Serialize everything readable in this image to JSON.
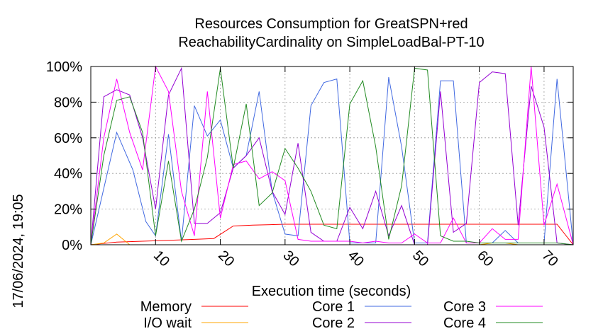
{
  "timestamp": "17/06/2024, 19:05",
  "chart_data": {
    "type": "line",
    "title_line1": "Resources Consumption for GreatSPN+red",
    "title_line2": "ReachabilityCardinality on SimpleLoadBal-PT-10",
    "xlabel": "Execution time (seconds)",
    "ylabel": "",
    "xlim": [
      0,
      74.5
    ],
    "ylim": [
      0,
      100
    ],
    "x_ticks": [
      10,
      20,
      30,
      40,
      50,
      60,
      70
    ],
    "x_tick_labels": [
      "10",
      "20",
      "30",
      "40",
      "50",
      "60",
      "70"
    ],
    "y_ticks": [
      0,
      20,
      40,
      60,
      80,
      100
    ],
    "y_tick_labels": [
      "0%",
      "20%",
      "40%",
      "60%",
      "80%",
      "100%"
    ],
    "grid": true,
    "legend_position": "bottom",
    "series": [
      {
        "name": "Memory",
        "color": "#ff0000",
        "x": [
          0,
          4,
          8,
          12,
          16,
          19,
          22,
          25,
          30,
          40,
          50,
          60,
          72,
          74.5
        ],
        "y": [
          0,
          1.5,
          2,
          2.5,
          3,
          3.5,
          10.5,
          11,
          11.5,
          11.5,
          11.5,
          11.5,
          11.5,
          0
        ]
      },
      {
        "name": "I/O wait",
        "color": "#ffa500",
        "x": [
          0,
          2,
          4,
          6,
          8,
          30,
          40,
          50,
          60,
          62,
          64,
          66,
          74.5
        ],
        "y": [
          0,
          1,
          6,
          0,
          0,
          0,
          0,
          0,
          0,
          1,
          1,
          0,
          0
        ]
      },
      {
        "name": "Core 1",
        "color": "#4169e1",
        "x": [
          0,
          4,
          6.5,
          8.5,
          10,
          12,
          14,
          16,
          18,
          20,
          22,
          24,
          26,
          28,
          30,
          32,
          34,
          36,
          38,
          40,
          42,
          44,
          46,
          48,
          50,
          52,
          54,
          56,
          58,
          60,
          62,
          64,
          66,
          68,
          70,
          72,
          74.5
        ],
        "y": [
          0,
          63,
          42,
          13,
          5,
          62,
          2,
          78,
          61,
          70,
          43,
          50,
          86,
          30,
          6,
          5,
          78,
          91,
          93,
          1,
          1,
          1,
          94,
          55,
          1,
          1,
          92,
          92,
          1,
          1,
          1,
          8,
          1,
          1,
          1,
          93,
          0
        ]
      },
      {
        "name": "Core 2",
        "color": "#9400d3",
        "x": [
          0,
          2,
          4,
          6,
          8,
          10,
          12,
          14,
          16,
          18,
          20,
          22,
          24,
          26,
          28,
          30,
          32,
          34,
          36,
          38,
          40,
          42,
          44,
          46,
          48,
          50,
          52,
          54,
          56,
          58,
          60,
          62,
          64,
          66,
          68,
          70,
          72,
          74.5
        ],
        "y": [
          0,
          83,
          87,
          84,
          60,
          20,
          84,
          99,
          12,
          12,
          18,
          43,
          50,
          60,
          30,
          17,
          57,
          7,
          2,
          2,
          21,
          9,
          30,
          5,
          22,
          0,
          0,
          86,
          7,
          12,
          91,
          97,
          96,
          11,
          89,
          66,
          1,
          0
        ]
      },
      {
        "name": "Core 3",
        "color": "#ff00ff",
        "x": [
          0,
          2,
          4,
          6,
          8,
          10,
          12,
          14,
          16,
          18,
          20,
          22,
          24,
          26,
          28,
          30,
          32,
          34,
          36,
          38,
          40,
          42,
          44,
          46,
          48,
          50,
          52,
          54,
          56,
          58,
          60,
          62,
          64,
          66,
          68,
          70,
          72,
          74.5
        ],
        "y": [
          0,
          60,
          93,
          63,
          42,
          100,
          86,
          30,
          5,
          86,
          15,
          45,
          47,
          37,
          41,
          36,
          3,
          2,
          2,
          2,
          2,
          1,
          2,
          1,
          1,
          6,
          1,
          1,
          15,
          1,
          1,
          9,
          3,
          3,
          100,
          11,
          34,
          0
        ]
      },
      {
        "name": "Core 4",
        "color": "#228b22",
        "x": [
          0,
          2,
          4,
          6,
          8,
          10,
          12,
          14,
          16,
          18,
          20,
          22,
          24,
          26,
          28,
          30,
          32,
          34,
          36,
          38,
          40,
          42,
          44,
          46,
          48,
          50,
          52,
          54,
          56,
          58,
          60,
          62,
          64,
          66,
          68,
          70,
          72,
          74.5
        ],
        "y": [
          0,
          50,
          81,
          83,
          63,
          5,
          47,
          2,
          20,
          49,
          99,
          43,
          79,
          22,
          29,
          54,
          43,
          30,
          11,
          9,
          79,
          92,
          55,
          3,
          33,
          99,
          98,
          5,
          2,
          2,
          1,
          1,
          1,
          1,
          1,
          1,
          1,
          0
        ]
      }
    ]
  }
}
